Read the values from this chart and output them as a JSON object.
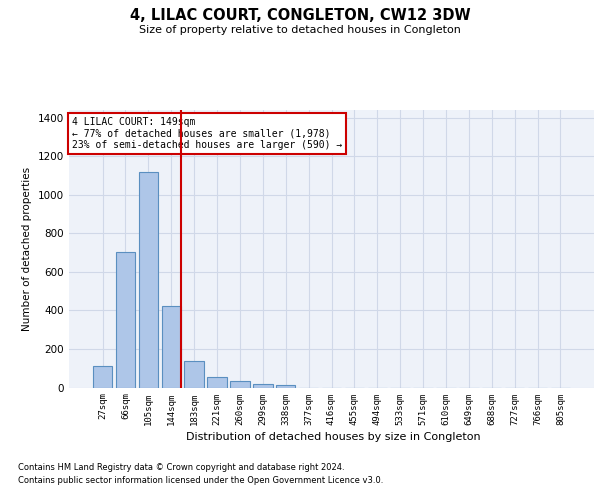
{
  "title": "4, LILAC COURT, CONGLETON, CW12 3DW",
  "subtitle": "Size of property relative to detached houses in Congleton",
  "xlabel": "Distribution of detached houses by size in Congleton",
  "ylabel": "Number of detached properties",
  "categories": [
    "27sqm",
    "66sqm",
    "105sqm",
    "144sqm",
    "183sqm",
    "221sqm",
    "260sqm",
    "299sqm",
    "338sqm",
    "377sqm",
    "416sqm",
    "455sqm",
    "494sqm",
    "533sqm",
    "571sqm",
    "610sqm",
    "649sqm",
    "688sqm",
    "727sqm",
    "766sqm",
    "805sqm"
  ],
  "values": [
    110,
    705,
    1120,
    425,
    138,
    55,
    32,
    18,
    12,
    0,
    0,
    0,
    0,
    0,
    0,
    0,
    0,
    0,
    0,
    0,
    0
  ],
  "bar_color": "#aec6e8",
  "bar_edge_color": "#5a8fc0",
  "bar_linewidth": 0.8,
  "grid_color": "#d0d8e8",
  "background_color": "#eef2f9",
  "marker_bar_index": 3,
  "marker_line_color": "#cc0000",
  "annotation_line1": "4 LILAC COURT: 149sqm",
  "annotation_line2": "← 77% of detached houses are smaller (1,978)",
  "annotation_line3": "23% of semi-detached houses are larger (590) →",
  "annotation_box_facecolor": "#ffffff",
  "annotation_box_edgecolor": "#cc0000",
  "ylim": [
    0,
    1440
  ],
  "yticks": [
    0,
    200,
    400,
    600,
    800,
    1000,
    1200,
    1400
  ],
  "footnote1": "Contains HM Land Registry data © Crown copyright and database right 2024.",
  "footnote2": "Contains public sector information licensed under the Open Government Licence v3.0."
}
